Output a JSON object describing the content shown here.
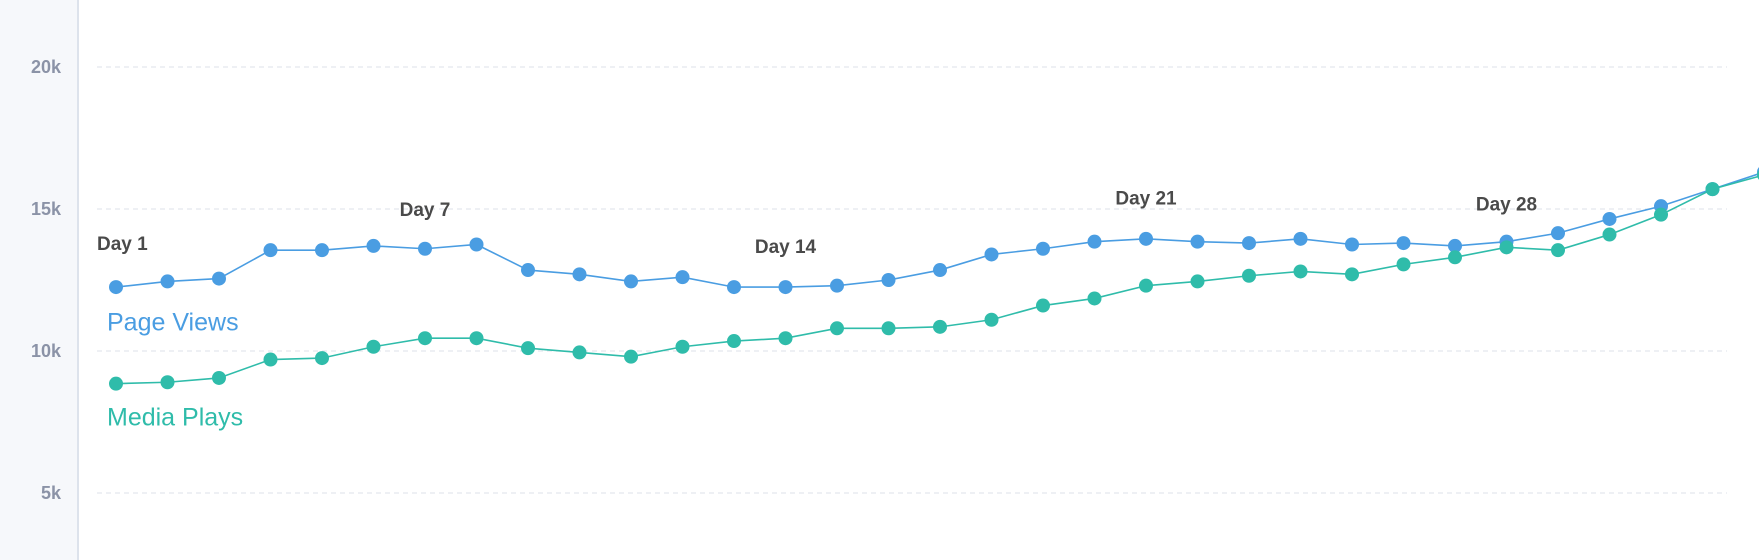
{
  "chart_data": {
    "type": "line",
    "x": [
      1,
      2,
      3,
      4,
      5,
      6,
      7,
      8,
      9,
      10,
      11,
      12,
      13,
      14,
      15,
      16,
      17,
      18,
      19,
      20,
      21,
      22,
      23,
      24,
      25,
      26,
      27,
      28,
      29,
      30,
      31,
      32,
      33
    ],
    "ylim": [
      2000,
      22000
    ],
    "yticks": [
      5000,
      10000,
      15000,
      20000
    ],
    "ytick_labels": [
      "5k",
      "10k",
      "15k",
      "20k"
    ],
    "grid": true,
    "day_labels": [
      {
        "day": 1,
        "text": "Day 1",
        "y": 13800
      },
      {
        "day": 7,
        "text": "Day 7",
        "y": 15000
      },
      {
        "day": 14,
        "text": "Day 14",
        "y": 13700
      },
      {
        "day": 21,
        "text": "Day 21",
        "y": 15400
      },
      {
        "day": 28,
        "text": "Day 28",
        "y": 15200
      }
    ],
    "series": [
      {
        "name": "Page Views",
        "color": "#4a9de2",
        "label_y": 11000,
        "values": [
          12250,
          12450,
          12550,
          13550,
          13550,
          13700,
          13600,
          13750,
          12850,
          12700,
          12450,
          12600,
          12250,
          12250,
          12300,
          12500,
          12850,
          13400,
          13600,
          13850,
          13950,
          13850,
          13800,
          13950,
          13750,
          13800,
          13700,
          13850,
          14150,
          14650,
          15100,
          15700,
          16300
        ]
      },
      {
        "name": "Media Plays",
        "color": "#2fbcaa",
        "label_y": 7650,
        "values": [
          8850,
          8900,
          9050,
          9700,
          9750,
          10150,
          10450,
          10450,
          10100,
          9950,
          9800,
          10150,
          10350,
          10450,
          10800,
          10800,
          10850,
          11100,
          11600,
          11850,
          12300,
          12450,
          12650,
          12800,
          12700,
          13050,
          13300,
          13650,
          13550,
          14100,
          14800,
          15700,
          16200
        ]
      }
    ]
  }
}
